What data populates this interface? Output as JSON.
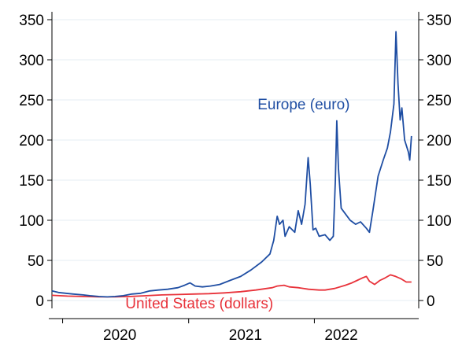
{
  "chart_data": {
    "type": "line",
    "title": "",
    "xlabel": "",
    "ylabel": "",
    "ylim": [
      0,
      350
    ],
    "yticks": [
      0,
      50,
      100,
      150,
      200,
      250,
      300,
      350
    ],
    "xlim": [
      "2019-12-01",
      "2022-10-31"
    ],
    "x_tick_labels": [
      {
        "label": "2020",
        "date": "2020-06-15"
      },
      {
        "label": "2021",
        "date": "2021-06-15"
      },
      {
        "label": "2022",
        "date": "2022-03-20"
      }
    ],
    "x_separators": [
      "2020-01-01",
      "2021-01-01",
      "2022-01-01"
    ],
    "grid": "horizontal",
    "series": [
      {
        "name": "Europe (euro)",
        "color": "#1f4ea3",
        "points": [
          [
            "2019-12-01",
            12
          ],
          [
            "2019-12-20",
            10
          ],
          [
            "2020-01-10",
            9
          ],
          [
            "2020-02-01",
            8
          ],
          [
            "2020-03-01",
            7
          ],
          [
            "2020-03-20",
            6
          ],
          [
            "2020-04-15",
            5
          ],
          [
            "2020-05-10",
            4.5
          ],
          [
            "2020-06-01",
            5
          ],
          [
            "2020-06-25",
            6
          ],
          [
            "2020-07-20",
            8
          ],
          [
            "2020-08-15",
            9
          ],
          [
            "2020-09-10",
            12
          ],
          [
            "2020-10-05",
            13
          ],
          [
            "2020-11-01",
            14
          ],
          [
            "2020-12-01",
            16
          ],
          [
            "2020-12-20",
            19
          ],
          [
            "2021-01-05",
            22
          ],
          [
            "2021-01-20",
            18
          ],
          [
            "2021-02-10",
            17
          ],
          [
            "2021-03-05",
            18
          ],
          [
            "2021-04-01",
            20
          ],
          [
            "2021-05-01",
            25
          ],
          [
            "2021-06-01",
            30
          ],
          [
            "2021-07-01",
            38
          ],
          [
            "2021-08-01",
            48
          ],
          [
            "2021-08-25",
            58
          ],
          [
            "2021-09-05",
            75
          ],
          [
            "2021-09-15",
            105
          ],
          [
            "2021-09-22",
            95
          ],
          [
            "2021-10-02",
            100
          ],
          [
            "2021-10-08",
            80
          ],
          [
            "2021-10-20",
            92
          ],
          [
            "2021-11-05",
            85
          ],
          [
            "2021-11-15",
            112
          ],
          [
            "2021-11-25",
            95
          ],
          [
            "2021-12-05",
            120
          ],
          [
            "2021-12-14",
            178
          ],
          [
            "2021-12-20",
            145
          ],
          [
            "2021-12-28",
            88
          ],
          [
            "2022-01-05",
            90
          ],
          [
            "2022-01-15",
            80
          ],
          [
            "2022-02-01",
            82
          ],
          [
            "2022-02-15",
            75
          ],
          [
            "2022-02-25",
            80
          ],
          [
            "2022-03-03",
            150
          ],
          [
            "2022-03-07",
            224
          ],
          [
            "2022-03-12",
            165
          ],
          [
            "2022-03-20",
            115
          ],
          [
            "2022-04-01",
            108
          ],
          [
            "2022-04-15",
            100
          ],
          [
            "2022-05-01",
            95
          ],
          [
            "2022-05-15",
            98
          ],
          [
            "2022-06-01",
            90
          ],
          [
            "2022-06-10",
            85
          ],
          [
            "2022-06-20",
            112
          ],
          [
            "2022-07-05",
            155
          ],
          [
            "2022-07-20",
            175
          ],
          [
            "2022-08-01",
            190
          ],
          [
            "2022-08-10",
            210
          ],
          [
            "2022-08-20",
            245
          ],
          [
            "2022-08-26",
            335
          ],
          [
            "2022-09-01",
            270
          ],
          [
            "2022-09-07",
            225
          ],
          [
            "2022-09-12",
            240
          ],
          [
            "2022-09-20",
            200
          ],
          [
            "2022-10-01",
            185
          ],
          [
            "2022-10-05",
            175
          ],
          [
            "2022-10-10",
            205
          ]
        ]
      },
      {
        "name": "United States (dollars)",
        "color": "#e8323a",
        "points": [
          [
            "2019-12-01",
            6.5
          ],
          [
            "2020-01-15",
            5.5
          ],
          [
            "2020-03-01",
            5
          ],
          [
            "2020-04-15",
            4.5
          ],
          [
            "2020-06-01",
            4.5
          ],
          [
            "2020-07-15",
            5
          ],
          [
            "2020-09-01",
            6
          ],
          [
            "2020-10-15",
            7
          ],
          [
            "2020-12-01",
            7.5
          ],
          [
            "2021-01-15",
            8
          ],
          [
            "2021-03-01",
            8.5
          ],
          [
            "2021-04-15",
            9.5
          ],
          [
            "2021-06-01",
            11
          ],
          [
            "2021-07-15",
            13
          ],
          [
            "2021-09-01",
            16
          ],
          [
            "2021-09-15",
            18
          ],
          [
            "2021-10-05",
            19
          ],
          [
            "2021-10-20",
            17
          ],
          [
            "2021-11-15",
            16
          ],
          [
            "2021-12-15",
            14
          ],
          [
            "2022-01-15",
            13
          ],
          [
            "2022-02-01",
            13
          ],
          [
            "2022-03-01",
            15
          ],
          [
            "2022-04-01",
            19
          ],
          [
            "2022-04-20",
            22
          ],
          [
            "2022-05-05",
            25
          ],
          [
            "2022-05-20",
            28
          ],
          [
            "2022-06-01",
            30
          ],
          [
            "2022-06-10",
            24
          ],
          [
            "2022-06-25",
            20
          ],
          [
            "2022-07-10",
            25
          ],
          [
            "2022-07-25",
            28
          ],
          [
            "2022-08-10",
            32
          ],
          [
            "2022-08-25",
            30
          ],
          [
            "2022-09-10",
            27
          ],
          [
            "2022-09-25",
            23
          ],
          [
            "2022-10-10",
            23
          ]
        ]
      }
    ],
    "annotations": [
      {
        "text": "Europe (euro)",
        "series": 0,
        "anchor_date": "2021-12-01",
        "anchor_value": 245,
        "color": "#1f4ea3"
      },
      {
        "text": "United States (dollars)",
        "series": 1,
        "anchor_date": "2021-02-01",
        "anchor_value": -3,
        "color": "#e8323a"
      }
    ]
  }
}
